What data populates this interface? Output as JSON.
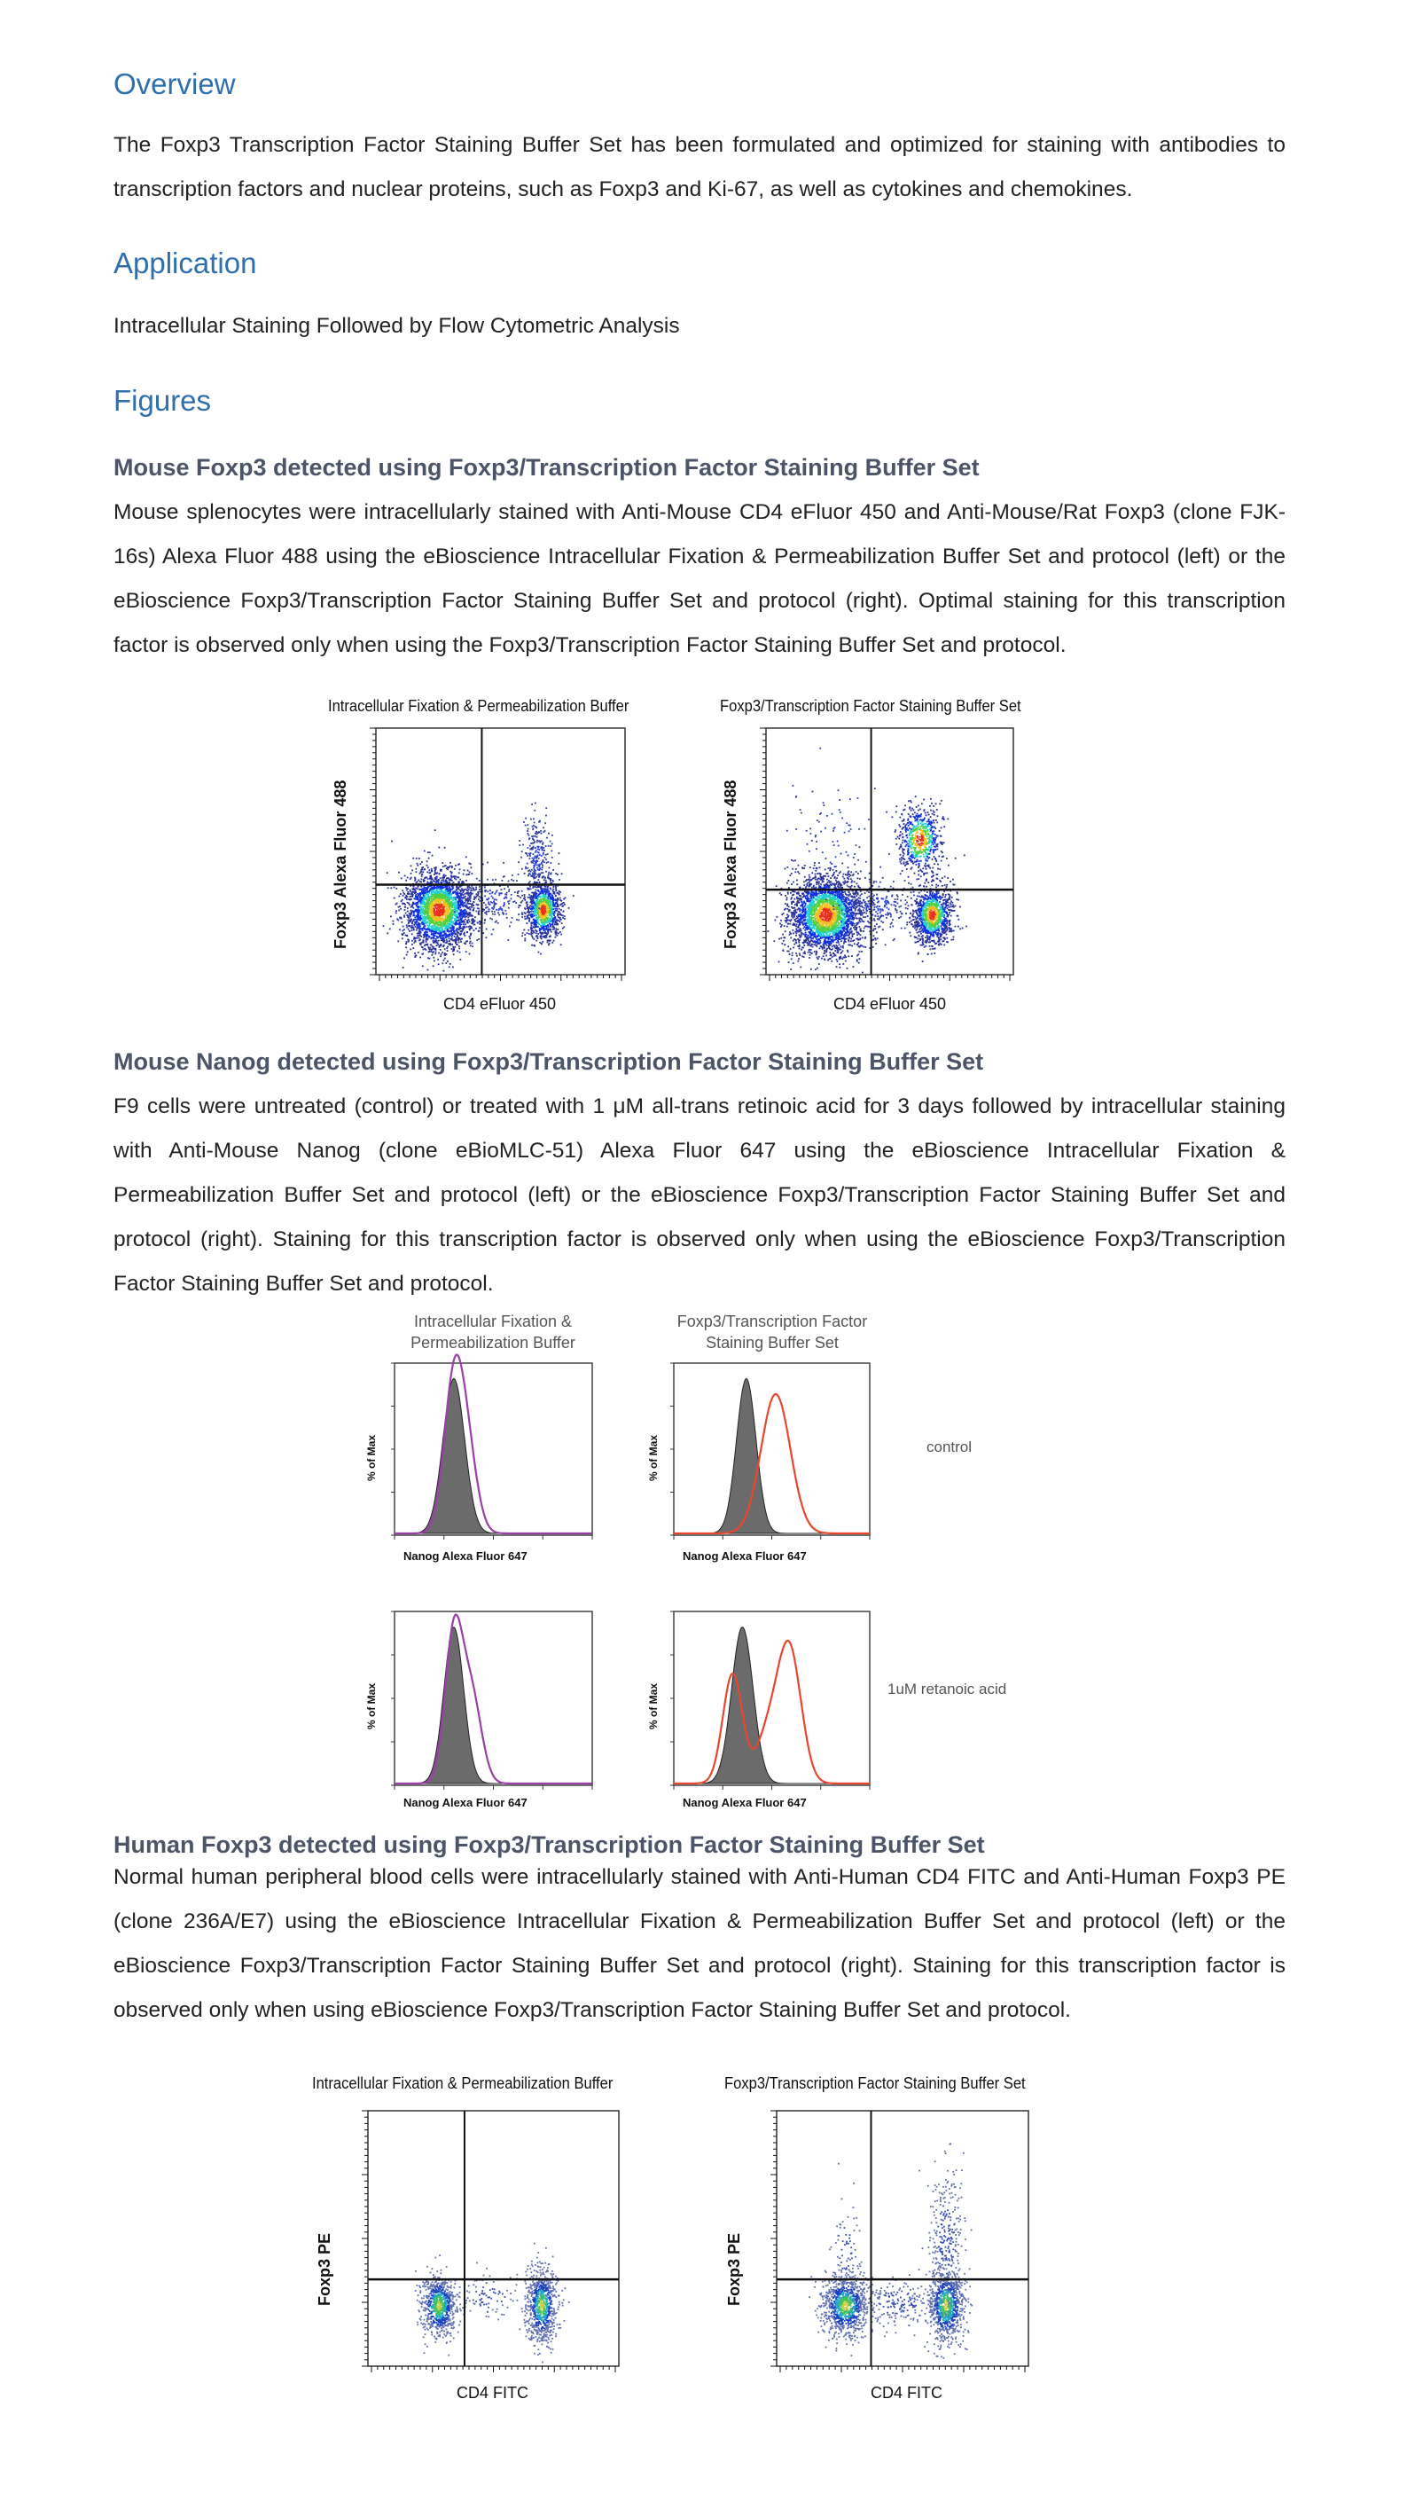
{
  "sections": {
    "overview": {
      "heading": "Overview",
      "text": "The Foxp3 Transcription Factor Staining Buffer Set has been formulated and optimized for staining with antibodies to transcription factors and nuclear proteins, such as Foxp3 and Ki-67, as well as cytokines and chemokines."
    },
    "application": {
      "heading": "Application",
      "text": "Intracellular Staining Followed by Flow Cytometric Analysis"
    },
    "figures": {
      "heading": "Figures",
      "items": [
        {
          "title": "Mouse Foxp3 detected using Foxp3/Transcription Factor Staining Buffer Set",
          "caption": "Mouse splenocytes were intracellularly stained with Anti-Mouse CD4 eFluor 450 and Anti-Mouse/Rat Foxp3 (clone FJK-16s) Alexa Fluor 488 using the eBioscience Intracellular Fixation & Permeabilization Buffer Set and protocol (left) or the eBioscience Foxp3/Transcription Factor Staining Buffer Set and protocol (right). Optimal staining for this transcription factor is observed only when using the Foxp3/Transcription Factor Staining Buffer Set and protocol.",
          "panels": [
            {
              "title": "Intracellular Fixation & Permeabilization Buffer",
              "xlabel": "CD4 eFluor 450",
              "ylabel": "Foxp3 Alexa Fluor 488"
            },
            {
              "title": "Foxp3/Transcription Factor Staining Buffer Set",
              "xlabel": "CD4 eFluor 450",
              "ylabel": "Foxp3 Alexa Fluor 488"
            }
          ]
        },
        {
          "title": "Mouse Nanog detected using Foxp3/Transcription Factor Staining Buffer Set",
          "caption": "F9 cells were untreated (control) or treated with 1 μM all-trans retinoic acid for 3 days followed by intracellular staining with Anti-Mouse Nanog (clone eBioMLC-51) Alexa Fluor 647 using the eBioscience Intracellular Fixation & Permeabilization Buffer Set and protocol (left) or the eBioscience Foxp3/Transcription Factor Staining Buffer Set and protocol (right). Staining for this transcription factor is observed only when using the eBioscience Foxp3/Transcription Factor Staining Buffer Set and protocol.",
          "column_titles": [
            "Intracellular Fixation & Permeabilization Buffer",
            "Foxp3/Transcription Factor Staining Buffer Set"
          ],
          "row_labels": [
            "control",
            "1uM retanoic acid"
          ],
          "xlabel": "Nanog Alexa Fluor 647",
          "ylabel": "% of Max",
          "colors": {
            "isotype_fill": "#6b6b6b",
            "left_outline": "#9b3fa8",
            "right_outline": "#e8472e"
          }
        },
        {
          "title": "Human Foxp3 detected using Foxp3/Transcription Factor Staining Buffer Set",
          "caption": "Normal human peripheral blood cells were intracellularly stained with Anti-Human CD4 FITC and Anti-Human Foxp3 PE (clone 236A/E7) using the eBioscience Intracellular Fixation & Permeabilization Buffer Set and protocol (left) or the eBioscience Foxp3/Transcription Factor Staining Buffer Set and protocol (right). Staining for this transcription factor is observed only when using eBioscience Foxp3/Transcription Factor Staining Buffer Set and protocol.",
          "panels": [
            {
              "title": "Intracellular Fixation & Permeabilization Buffer",
              "xlabel": "CD4 FITC",
              "ylabel": "Foxp3 PE"
            },
            {
              "title": "Foxp3/Transcription Factor Staining Buffer Set",
              "xlabel": "CD4 FITC",
              "ylabel": "Foxp3 PE"
            }
          ]
        }
      ]
    }
  },
  "colors": {
    "heading": "#2f6fad",
    "subheading": "#4b5567",
    "text": "#222222"
  }
}
